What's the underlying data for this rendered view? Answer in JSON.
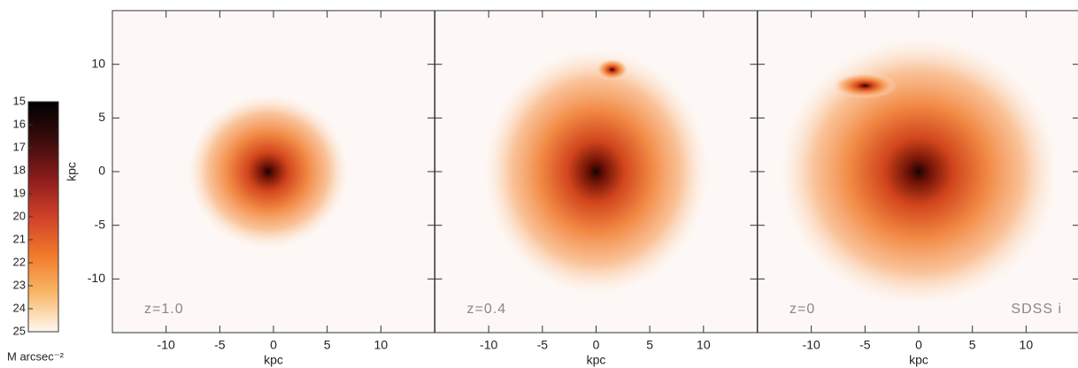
{
  "chart_data": [
    {
      "type": "image",
      "annotations": [
        "z=1.0"
      ],
      "xlabel": "kpc",
      "ylabel": "kpc",
      "xlim": [
        -15,
        15
      ],
      "ylim": [
        -15,
        15
      ],
      "xticks": [
        -10,
        -5,
        0,
        5,
        10
      ],
      "yticks": [
        -10,
        -5,
        0,
        5,
        10
      ]
    },
    {
      "type": "image",
      "annotations": [
        "z=0.4"
      ],
      "xlabel": "kpc",
      "xlim": [
        -15,
        15
      ],
      "ylim": [
        -15,
        15
      ],
      "xticks": [
        -10,
        -5,
        0,
        5,
        10
      ],
      "yticks": [
        -10,
        -5,
        0,
        5,
        10
      ]
    },
    {
      "type": "image",
      "annotations": [
        "z=0",
        "SDSS i"
      ],
      "xlabel": "kpc",
      "xlim": [
        -15,
        15
      ],
      "ylim": [
        -15,
        15
      ],
      "xticks": [
        -10,
        -5,
        0,
        5,
        10
      ],
      "yticks": [
        -10,
        -5,
        0,
        5,
        10
      ]
    },
    {
      "type": "colorbar",
      "label": "M arcsec⁻²",
      "ylim": [
        15,
        25
      ],
      "yticks": [
        15,
        16,
        17,
        18,
        19,
        20,
        21,
        22,
        23,
        24,
        25
      ],
      "colors": [
        "#000000",
        "#3a0c0c",
        "#8b1c1c",
        "#d0402a",
        "#f07a2a",
        "#f8b868",
        "#fff8f2"
      ]
    }
  ]
}
